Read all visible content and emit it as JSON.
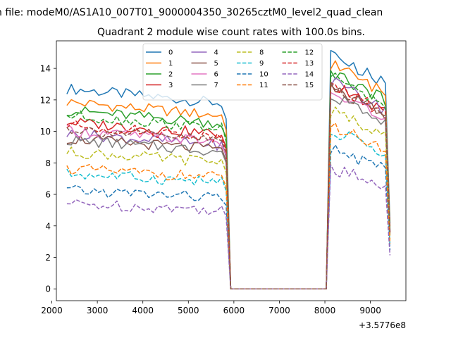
{
  "suptitle": "n file: modeM0/AS1A10_007T01_9000004350_30265cztM0_level2_quad_clean",
  "chart_data": {
    "type": "line",
    "title": "Quadrant 2 module wise count rates with 100.0s bins.",
    "xlabel": "",
    "ylabel": "",
    "x_offset_label": "+3.5776e8",
    "xlim": [
      2100,
      9780
    ],
    "ylim": [
      -0.75,
      15.75
    ],
    "xticks": [
      2000,
      3000,
      4000,
      5000,
      6000,
      7000,
      8000,
      9000
    ],
    "xtick_labels": [
      "2000",
      "3000",
      "4000",
      "5000",
      "6000",
      "7000",
      "8000",
      "9000"
    ],
    "yticks": [
      0,
      2,
      4,
      6,
      8,
      10,
      12,
      14
    ],
    "ytick_labels": [
      "0",
      "2",
      "4",
      "6",
      "8",
      "10",
      "12",
      "14"
    ],
    "grid": false,
    "legend_position": "top-center",
    "legend_columns": 4,
    "segments": [
      {
        "start": 2330,
        "end": 5830,
        "step": 100
      },
      {
        "start": 5930,
        "end": 8030,
        "step": 100
      },
      {
        "start": 8130,
        "end": 9430,
        "step": 100
      }
    ],
    "series": [
      {
        "name": "0",
        "color": "#1f77b4",
        "dash": "solid",
        "active1": 12.0,
        "active2": 13.9
      },
      {
        "name": "1",
        "color": "#ff7f0e",
        "dash": "solid",
        "active1": 11.2,
        "active2": 13.3
      },
      {
        "name": "2",
        "color": "#2ca02c",
        "dash": "solid",
        "active1": 10.7,
        "active2": 12.8
      },
      {
        "name": "3",
        "color": "#d62728",
        "dash": "solid",
        "active1": 10.0,
        "active2": 12.0
      },
      {
        "name": "4",
        "color": "#9467bd",
        "dash": "solid",
        "active1": 9.3,
        "active2": 12.2
      },
      {
        "name": "5",
        "color": "#8c564b",
        "dash": "solid",
        "active1": 9.0,
        "active2": 11.8
      },
      {
        "name": "6",
        "color": "#e377c2",
        "dash": "solid",
        "active1": 9.5,
        "active2": 11.6
      },
      {
        "name": "7",
        "color": "#7f7f7f",
        "dash": "solid",
        "active1": 8.9,
        "active2": 11.4
      },
      {
        "name": "8",
        "color": "#bcbd22",
        "dash": "dashed",
        "active1": 8.2,
        "active2": 10.5
      },
      {
        "name": "9",
        "color": "#17becf",
        "dash": "dashed",
        "active1": 6.9,
        "active2": 9.3
      },
      {
        "name": "10",
        "color": "#1f77b4",
        "dash": "dashed",
        "active1": 5.9,
        "active2": 8.2
      },
      {
        "name": "11",
        "color": "#ff7f0e",
        "dash": "dashed",
        "active1": 7.2,
        "active2": 9.6
      },
      {
        "name": "12",
        "color": "#2ca02c",
        "dash": "dashed",
        "active1": 10.4,
        "active2": 12.5
      },
      {
        "name": "13",
        "color": "#d62728",
        "dash": "dashed",
        "active1": 9.8,
        "active2": 12.0
      },
      {
        "name": "14",
        "color": "#9467bd",
        "dash": "dashed",
        "active1": 5.1,
        "active2": 7.1
      },
      {
        "name": "15",
        "color": "#8c564b",
        "dash": "dashed",
        "active1": 9.6,
        "active2": 11.9
      }
    ]
  }
}
